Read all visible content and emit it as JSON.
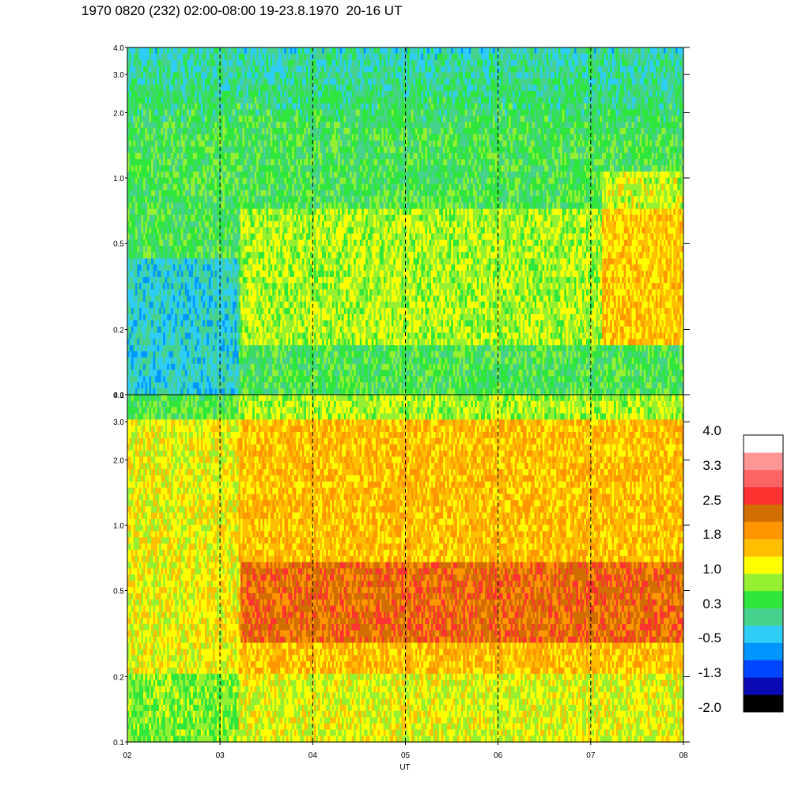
{
  "title": "1970 0820 (232) 02:00-08:00 19-23.8.1970  20-16 UT",
  "chart_data": {
    "type": "heatmap",
    "x_axis": {
      "label": "UT",
      "range": [
        2,
        8
      ],
      "tick_labels": [
        "02",
        "03",
        "04",
        "05",
        "06",
        "07",
        "08"
      ],
      "dashed_hour_markers": [
        3,
        4,
        5,
        6,
        7
      ]
    },
    "panels": [
      {
        "name": "upper",
        "y_axis": {
          "scale": "log",
          "range": [
            0.1,
            4.0
          ],
          "ticks": [
            0.1,
            0.2,
            0.5,
            1.0,
            2.0,
            3.0,
            4.0
          ],
          "tick_labels": [
            "0.1",
            "0.2",
            "0.5",
            "1.0",
            "2.0",
            "3.0",
            "4.0"
          ]
        },
        "dominant_range": [
          -0.5,
          1.0
        ]
      },
      {
        "name": "lower",
        "y_axis": {
          "scale": "log",
          "range": [
            0.1,
            4.0
          ],
          "ticks": [
            0.1,
            0.2,
            0.5,
            1.0,
            2.0,
            3.0,
            4.0
          ],
          "tick_labels": [
            "0.1",
            "0.2",
            "0.5",
            "1.0",
            "2.0",
            "3.0",
            "4.0"
          ]
        },
        "dominant_range": [
          0.3,
          2.5
        ]
      }
    ],
    "colorbar": {
      "labels": [
        "4.0",
        "3.3",
        "2.5",
        "1.8",
        "1.0",
        "0.3",
        "-0.5",
        "-1.3",
        "-2.0"
      ],
      "colors": [
        "#000000",
        "#0a0ab4",
        "#0046ff",
        "#0096ff",
        "#2ecdf5",
        "#46d28c",
        "#2ee63c",
        "#96f032",
        "#ffff00",
        "#ffbe00",
        "#ff9600",
        "#d26e00",
        "#ff3232",
        "#ff6464",
        "#ff9696",
        "#ffffff"
      ]
    }
  }
}
